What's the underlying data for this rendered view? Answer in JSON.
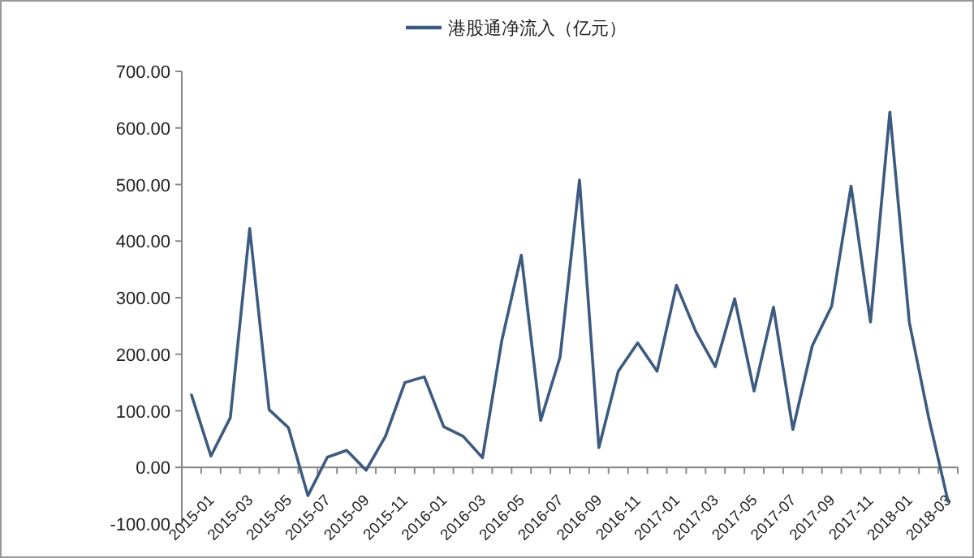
{
  "chart_data": {
    "type": "line",
    "legend": "top",
    "categories": [
      "2015-01",
      null,
      "2015-03",
      null,
      "2015-05",
      null,
      "2015-07",
      null,
      "2015-09",
      null,
      "2015-11",
      null,
      "2016-01",
      null,
      "2016-03",
      null,
      "2016-05",
      null,
      "2016-07",
      null,
      "2016-09",
      null,
      "2016-11",
      null,
      "2017-01",
      null,
      "2017-03",
      null,
      "2017-05",
      null,
      "2017-07",
      null,
      "2017-09",
      null,
      "2017-11",
      null,
      "2018-01",
      null,
      "2018-03",
      null
    ],
    "series": [
      {
        "name": "港股通净流入（亿元）",
        "color": "#3d5a80",
        "values": [
          128,
          20,
          88,
          422,
          102,
          70,
          -50,
          18,
          30,
          -5,
          55,
          150,
          160,
          72,
          55,
          17,
          225,
          375,
          83,
          195,
          508,
          35,
          170,
          220,
          170,
          322,
          240,
          178,
          298,
          135,
          283,
          67,
          215,
          285,
          497,
          257,
          628,
          257,
          88,
          -60
        ]
      }
    ],
    "ylim": [
      -100,
      700
    ],
    "yticks": [
      {
        "value": -100,
        "label": "-100.00"
      },
      {
        "value": 0,
        "label": "0.00"
      },
      {
        "value": 100,
        "label": "100.00"
      },
      {
        "value": 200,
        "label": "200.00"
      },
      {
        "value": 300,
        "label": "300.00"
      },
      {
        "value": 400,
        "label": "400.00"
      },
      {
        "value": 500,
        "label": "500.00"
      },
      {
        "value": 600,
        "label": "600.00"
      },
      {
        "value": 700,
        "label": "700.00"
      }
    ]
  }
}
